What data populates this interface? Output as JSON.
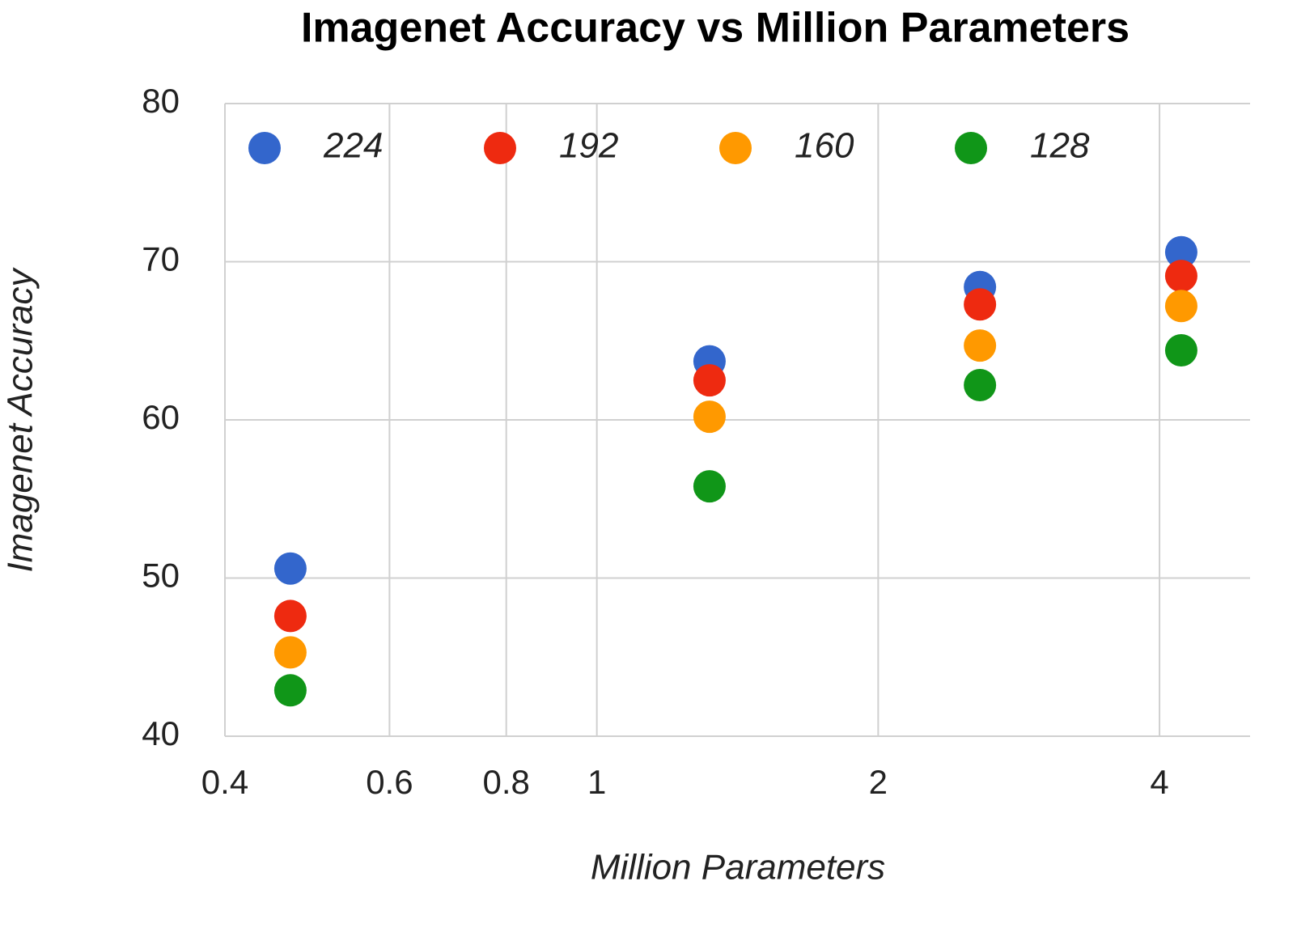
{
  "chart_data": {
    "type": "scatter",
    "title": "Imagenet Accuracy vs Million Parameters",
    "xlabel": "Million Parameters",
    "ylabel": "Imagenet Accuracy",
    "x": [
      0.47,
      1.32,
      2.57,
      4.22
    ],
    "series": [
      {
        "name": "224",
        "color": "#3366cc",
        "values": [
          50.6,
          63.7,
          68.4,
          70.6
        ]
      },
      {
        "name": "192",
        "color": "#ee2a10",
        "values": [
          47.6,
          62.5,
          67.3,
          69.1
        ]
      },
      {
        "name": "160",
        "color": "#ff9900",
        "values": [
          45.3,
          60.2,
          64.7,
          67.2
        ]
      },
      {
        "name": "128",
        "color": "#109618",
        "values": [
          42.9,
          55.8,
          62.2,
          64.4
        ]
      }
    ],
    "xlim": [
      0.4,
      5
    ],
    "xticks": [
      0.4,
      0.6,
      0.8,
      1,
      2,
      4
    ],
    "xscale": "log",
    "ylim": [
      40,
      80
    ],
    "yticks": [
      40,
      50,
      60,
      70,
      80
    ],
    "grid": true,
    "legend": "top"
  }
}
